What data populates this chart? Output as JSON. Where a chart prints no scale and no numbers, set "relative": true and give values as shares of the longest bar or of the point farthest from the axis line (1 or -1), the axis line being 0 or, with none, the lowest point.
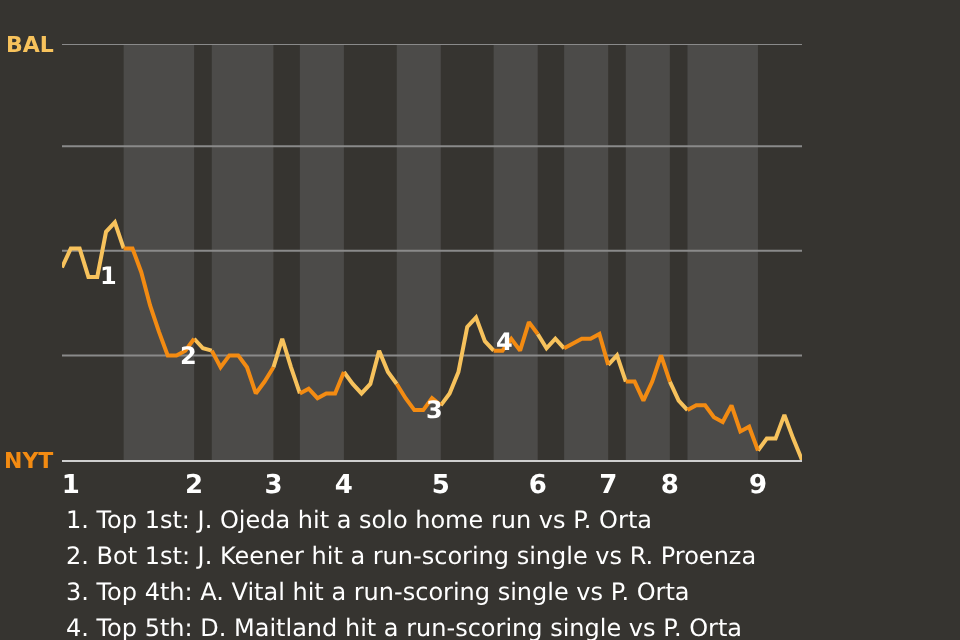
{
  "chart_data": {
    "type": "line",
    "relative": true,
    "categories": [
      null,
      "1",
      null,
      null,
      null,
      null,
      null,
      null,
      null,
      null,
      null,
      null,
      null,
      null,
      null,
      "2",
      null,
      null,
      null,
      null,
      null,
      null,
      null,
      null,
      "3",
      null,
      null,
      null,
      null,
      null,
      null,
      null,
      "4",
      null,
      null,
      null,
      null,
      null,
      null,
      null,
      null,
      null,
      null,
      "5",
      null,
      null,
      null,
      null,
      null,
      null,
      null,
      null,
      null,
      null,
      "6",
      null,
      null,
      null,
      null,
      null,
      null,
      null,
      "7",
      null,
      null,
      null,
      null,
      null,
      null,
      "8",
      null,
      null,
      null,
      null,
      null,
      null,
      null,
      null,
      null,
      "9",
      null,
      null,
      null,
      null,
      null
    ],
    "marker": "none",
    "line_style": "solid",
    "series": [
      {
        "color": "#f7c25c",
        "values": [
          0.81,
          0.89,
          0.89,
          0.77,
          0.77,
          0.96,
          1,
          0.89,
          null,
          null,
          null,
          null,
          null,
          null,
          null,
          0.51,
          0.47,
          0.46,
          null,
          null,
          null,
          null,
          null,
          null,
          0.39,
          0.51,
          0.39,
          0.28,
          null,
          null,
          null,
          null,
          0.37,
          0.32,
          0.28,
          0.32,
          0.46,
          0.37,
          0.32,
          null,
          null,
          null,
          null,
          0.23,
          0.28,
          0.37,
          0.56,
          0.6,
          0.5,
          0.46,
          null,
          null,
          null,
          null,
          0.53,
          0.47,
          0.51,
          0.47,
          null,
          null,
          null,
          null,
          0.4,
          0.44,
          0.33,
          null,
          null,
          null,
          null,
          0.33,
          0.25,
          0.21,
          null,
          null,
          null,
          null,
          null,
          null,
          null,
          0.04,
          0.09,
          0.09,
          0.19,
          0.09,
          0
        ],
        "name": null
      },
      {
        "color": "#f38b12",
        "values": [
          null,
          null,
          null,
          null,
          null,
          null,
          null,
          0.89,
          0.89,
          0.79,
          0.65,
          0.54,
          0.44,
          0.44,
          0.46,
          0.51,
          null,
          0.46,
          0.39,
          0.44,
          0.44,
          0.39,
          0.28,
          0.33,
          0.39,
          null,
          null,
          0.28,
          0.3,
          0.26,
          0.28,
          0.28,
          0.37,
          null,
          null,
          null,
          null,
          null,
          0.32,
          0.26,
          0.21,
          0.21,
          0.26,
          0.23,
          null,
          null,
          null,
          null,
          null,
          0.46,
          0.46,
          0.51,
          0.46,
          0.58,
          0.53,
          null,
          null,
          0.47,
          0.49,
          0.51,
          0.51,
          0.53,
          0.4,
          null,
          0.33,
          0.33,
          0.25,
          0.33,
          0.44,
          0.33,
          null,
          0.21,
          0.23,
          0.23,
          0.18,
          0.16,
          0.23,
          0.12,
          0.14,
          0.04,
          null,
          null,
          null,
          null,
          null
        ]
      }
    ],
    "ref_lines": [
      {
        "axis": "y",
        "value": 0.44,
        "label": null,
        "color": "#8a8a8a"
      },
      {
        "axis": "y",
        "value": 0.88,
        "label": null,
        "color": "#8a8a8a"
      },
      {
        "axis": "y",
        "value": 1.32,
        "label": null,
        "color": "#8a8a8a"
      },
      {
        "axis": "y",
        "value": 1.75,
        "label": null,
        "color": "#8a8a8a"
      }
    ],
    "annotations": [
      {
        "text": "1",
        "y": 0.77
      },
      {
        "text": "2",
        "y": 0.44
      },
      {
        "text": "3",
        "y": 0.21
      },
      {
        "text": "4",
        "y": 0.5
      },
      "BAL",
      "NYT",
      "1. Top 1st: J. Ojeda hit a solo home run vs P. Orta",
      "2. Bot 1st: J. Keener hit a run-scoring single vs R. Proenza",
      "3. Top 4th: A. Vital hit a run-scoring single vs P. Orta",
      "4. Top 5th: D. Maitland hit a run-scoring single vs P. Orta"
    ]
  }
}
